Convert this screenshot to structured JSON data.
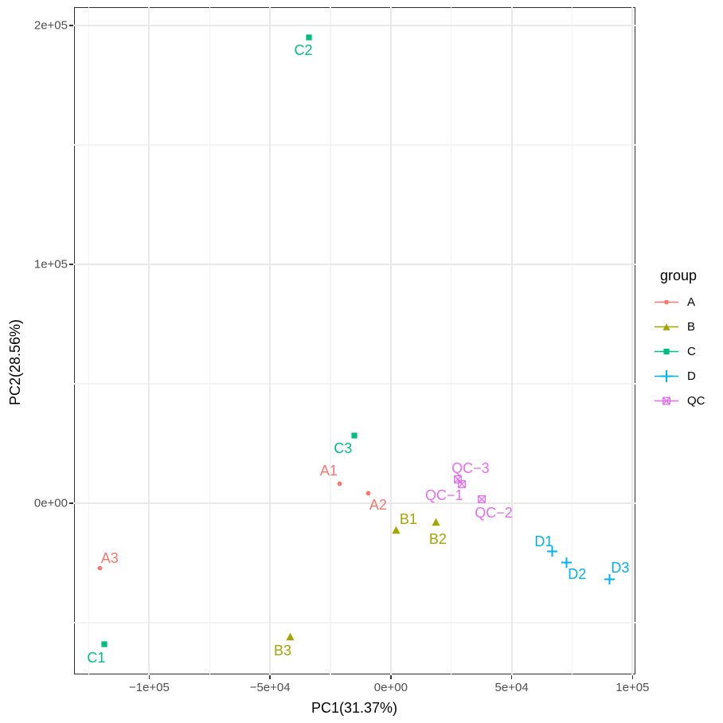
{
  "chart_data": {
    "type": "scatter",
    "title": "",
    "xlabel": "PC1(31.37%)",
    "ylabel": "PC2(28.56%)",
    "legend_title": "group",
    "legend_position": "right",
    "grid": "on",
    "xlim": [
      -131100,
      101200
    ],
    "ylim": [
      -71700,
      207700
    ],
    "x_ticks": [
      -100000,
      -50000,
      0,
      50000,
      100000
    ],
    "x_tick_labels": [
      "−1e+05",
      "−5e+04",
      "0e+00",
      "5e+04",
      "1e+05"
    ],
    "x_minor_ticks": [
      -125000,
      -75000,
      -25000,
      25000,
      75000
    ],
    "y_ticks": [
      0,
      100000,
      200000
    ],
    "y_tick_labels": [
      "0e+00",
      "1e+05",
      "2e+05"
    ],
    "y_minor_ticks": [
      -50000,
      50000,
      150000
    ],
    "style": {
      "panel_border": "#2d2d2d",
      "grid_major": "#e9e9e9",
      "grid_minor": "#f3f3f3",
      "tick_text": "#4d4d4d",
      "axis_title": "#000000",
      "background": "#ffffff"
    },
    "series": [
      {
        "name": "A",
        "color": "#F8766D",
        "marker": "circle",
        "points": [
          {
            "label": "A1",
            "x": -21100,
            "y": 8300,
            "label_offset": [
              -14,
              -16
            ]
          },
          {
            "label": "A2",
            "x": -9200,
            "y": 4300,
            "label_offset": [
              12,
              15
            ]
          },
          {
            "label": "A3",
            "x": -120300,
            "y": -27300,
            "label_offset": [
              12,
              -13
            ]
          }
        ]
      },
      {
        "name": "B",
        "color": "#A3A500",
        "marker": "triangle",
        "points": [
          {
            "label": "B1",
            "x": 2300,
            "y": -11300,
            "label_offset": [
              15,
              -14
            ]
          },
          {
            "label": "B2",
            "x": 18800,
            "y": -8000,
            "label_offset": [
              2,
              21
            ]
          },
          {
            "label": "B3",
            "x": -41800,
            "y": -55700,
            "label_offset": [
              -9,
              18
            ]
          }
        ]
      },
      {
        "name": "C",
        "color": "#00BF7D",
        "marker": "square",
        "points": [
          {
            "label": "C1",
            "x": -118600,
            "y": -59000,
            "label_offset": [
              -10,
              17
            ]
          },
          {
            "label": "C2",
            "x": -33900,
            "y": 195000,
            "label_offset": [
              -7,
              16
            ]
          },
          {
            "label": "C3",
            "x": -15200,
            "y": 28300,
            "label_offset": [
              -14,
              16
            ]
          }
        ]
      },
      {
        "name": "D",
        "color": "#00B0F6",
        "marker": "plus",
        "points": [
          {
            "label": "D1",
            "x": 66900,
            "y": -20300,
            "label_offset": [
              -11,
              -13
            ]
          },
          {
            "label": "D2",
            "x": 72800,
            "y": -25000,
            "label_offset": [
              13,
              14
            ]
          },
          {
            "label": "D3",
            "x": 90600,
            "y": -31700,
            "label_offset": [
              13,
              -14
            ]
          }
        ]
      },
      {
        "name": "QC",
        "color": "#E76BF3",
        "marker": "square-cross",
        "points": [
          {
            "label": "QC−1",
            "x": 29300,
            "y": 8000,
            "label_offset": [
              -22,
              14
            ]
          },
          {
            "label": "QC−2",
            "x": 37600,
            "y": 1700,
            "label_offset": [
              15,
              17
            ]
          },
          {
            "label": "QC−3",
            "x": 27700,
            "y": 10000,
            "label_offset": [
              16,
              -14
            ]
          }
        ]
      }
    ]
  }
}
